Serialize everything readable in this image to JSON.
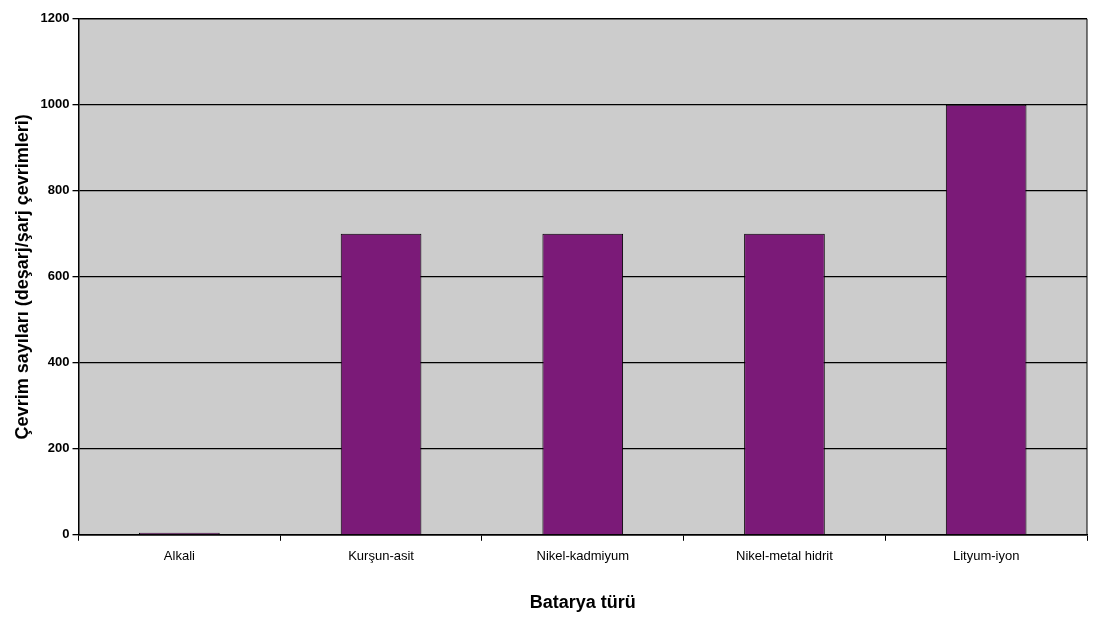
{
  "chart_data": {
    "type": "bar",
    "xlabel": "Batarya türü",
    "ylabel": "Çevrim sayıları (deşarj/şarj çevrimleri)",
    "categories": [
      "Alkali",
      "Kurşun-asit",
      "Nikel-kadmiyum",
      "Nikel-metal hidrit",
      "Lityum-iyon"
    ],
    "values": [
      5,
      700,
      700,
      700,
      1000
    ],
    "color": "#7b1a78",
    "ylim": [
      0,
      1200
    ],
    "yticks": [
      0,
      200,
      400,
      600,
      800,
      1000,
      1200
    ],
    "grid": "y",
    "legend": false
  }
}
